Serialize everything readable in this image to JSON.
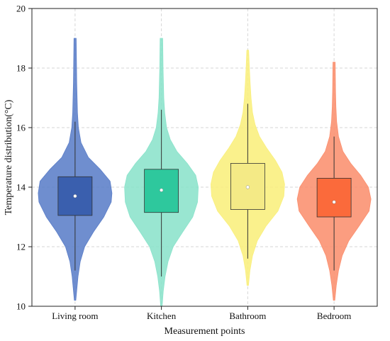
{
  "chart_data": {
    "type": "violin",
    "xlabel": "Measurement points",
    "ylabel": "Temperature distribution(°C)",
    "ylim": [
      10,
      20
    ],
    "yticks": [
      10,
      12,
      14,
      16,
      18,
      20
    ],
    "grid": true,
    "categories": [
      "Living room",
      "Kitchen",
      "Bathroom",
      "Bedroom"
    ],
    "series": [
      {
        "category": "Living room",
        "violin_color": "#5b7ec8",
        "box_color": "#3a5fae",
        "mean_marker_color": "#ffffff",
        "min": 10.2,
        "max": 19.0,
        "whisker_low": 11.2,
        "q1": 13.05,
        "median": 13.7,
        "mean": 13.7,
        "q3": 14.35,
        "whisker_high": 16.2,
        "density": [
          [
            10.2,
            0.02
          ],
          [
            10.6,
            0.05
          ],
          [
            11.0,
            0.08
          ],
          [
            11.5,
            0.14
          ],
          [
            12.0,
            0.26
          ],
          [
            12.5,
            0.5
          ],
          [
            13.0,
            0.78
          ],
          [
            13.5,
            0.98
          ],
          [
            13.8,
            1.0
          ],
          [
            14.2,
            0.95
          ],
          [
            14.6,
            0.68
          ],
          [
            15.0,
            0.36
          ],
          [
            15.5,
            0.16
          ],
          [
            16.0,
            0.09
          ],
          [
            16.5,
            0.065
          ],
          [
            17.0,
            0.055
          ],
          [
            17.5,
            0.045
          ],
          [
            18.0,
            0.04
          ],
          [
            18.5,
            0.035
          ],
          [
            19.0,
            0.03
          ]
        ]
      },
      {
        "category": "Kitchen",
        "violin_color": "#8be3cb",
        "box_color": "#2ec89d",
        "mean_marker_color": "#ffffff",
        "min": 10.0,
        "max": 19.0,
        "whisker_low": 11.0,
        "q1": 13.15,
        "median": 13.9,
        "mean": 13.9,
        "q3": 14.6,
        "whisker_high": 16.6,
        "density": [
          [
            10.0,
            0.02
          ],
          [
            10.5,
            0.05
          ],
          [
            11.0,
            0.1
          ],
          [
            11.5,
            0.18
          ],
          [
            12.0,
            0.32
          ],
          [
            12.5,
            0.58
          ],
          [
            13.0,
            0.85
          ],
          [
            13.5,
            0.98
          ],
          [
            14.0,
            1.0
          ],
          [
            14.4,
            0.93
          ],
          [
            14.8,
            0.7
          ],
          [
            15.2,
            0.42
          ],
          [
            15.6,
            0.24
          ],
          [
            16.0,
            0.14
          ],
          [
            16.5,
            0.09
          ],
          [
            17.0,
            0.065
          ],
          [
            17.5,
            0.055
          ],
          [
            18.0,
            0.045
          ],
          [
            18.5,
            0.04
          ],
          [
            19.0,
            0.035
          ]
        ]
      },
      {
        "category": "Bathroom",
        "violin_color": "#f9ef7c",
        "box_color": "#f4ea86",
        "mean_marker_color": "#ffffff",
        "min": 10.7,
        "max": 18.6,
        "whisker_low": 11.6,
        "q1": 13.25,
        "median": 14.0,
        "mean": 14.0,
        "q3": 14.8,
        "whisker_high": 16.8,
        "density": [
          [
            10.7,
            0.02
          ],
          [
            11.2,
            0.06
          ],
          [
            11.7,
            0.13
          ],
          [
            12.2,
            0.26
          ],
          [
            12.7,
            0.5
          ],
          [
            13.2,
            0.82
          ],
          [
            13.7,
            0.98
          ],
          [
            14.1,
            1.0
          ],
          [
            14.5,
            0.93
          ],
          [
            14.9,
            0.75
          ],
          [
            15.3,
            0.52
          ],
          [
            15.7,
            0.32
          ],
          [
            16.1,
            0.2
          ],
          [
            16.5,
            0.13
          ],
          [
            17.0,
            0.09
          ],
          [
            17.5,
            0.065
          ],
          [
            18.0,
            0.045
          ],
          [
            18.6,
            0.025
          ]
        ]
      },
      {
        "category": "Bedroom",
        "violin_color": "#fb8f6e",
        "box_color": "#fb6a3b",
        "mean_marker_color": "#ffffff",
        "min": 10.2,
        "max": 18.2,
        "whisker_low": 11.2,
        "q1": 13.0,
        "median": 13.5,
        "mean": 13.5,
        "q3": 14.3,
        "whisker_high": 15.7,
        "density": [
          [
            10.2,
            0.02
          ],
          [
            10.7,
            0.06
          ],
          [
            11.2,
            0.12
          ],
          [
            11.7,
            0.22
          ],
          [
            12.2,
            0.4
          ],
          [
            12.7,
            0.68
          ],
          [
            13.2,
            0.95
          ],
          [
            13.6,
            1.0
          ],
          [
            14.0,
            0.93
          ],
          [
            14.4,
            0.72
          ],
          [
            14.8,
            0.45
          ],
          [
            15.2,
            0.24
          ],
          [
            15.7,
            0.12
          ],
          [
            16.2,
            0.07
          ],
          [
            16.7,
            0.05
          ],
          [
            17.2,
            0.04
          ],
          [
            17.7,
            0.035
          ],
          [
            18.2,
            0.03
          ]
        ]
      }
    ]
  }
}
